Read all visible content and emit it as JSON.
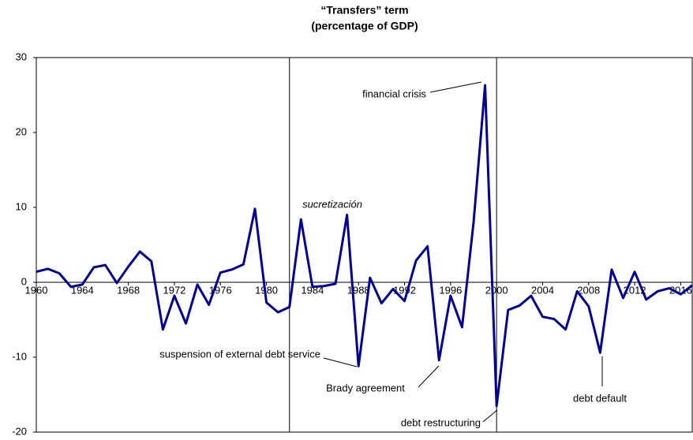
{
  "chart_data": {
    "type": "line",
    "title": "“Transfers” term",
    "subtitle": "(percentage of GDP)",
    "x": [
      1960,
      1961,
      1962,
      1963,
      1964,
      1965,
      1966,
      1967,
      1968,
      1969,
      1970,
      1971,
      1972,
      1973,
      1974,
      1975,
      1976,
      1977,
      1978,
      1979,
      1980,
      1981,
      1982,
      1983,
      1984,
      1985,
      1986,
      1987,
      1988,
      1989,
      1990,
      1991,
      1992,
      1993,
      1994,
      1995,
      1996,
      1997,
      1998,
      1999,
      2000,
      2001,
      2002,
      2003,
      2004,
      2005,
      2006,
      2007,
      2008,
      2009,
      2010,
      2011,
      2012,
      2013,
      2014,
      2015,
      2016,
      2017
    ],
    "values": [
      1.4,
      1.8,
      1.2,
      -0.6,
      -0.3,
      2.0,
      2.3,
      -0.1,
      2.1,
      4.1,
      2.8,
      -6.3,
      -1.8,
      -5.5,
      -0.3,
      -3.0,
      1.3,
      1.7,
      2.4,
      9.8,
      -2.7,
      -4.0,
      -3.3,
      8.4,
      -0.6,
      -0.5,
      -0.2,
      9.0,
      -11.2,
      0.6,
      -2.8,
      -0.9,
      -2.5,
      2.9,
      4.8,
      -10.4,
      -1.8,
      -6.0,
      8.0,
      26.3,
      -16.5,
      -3.7,
      -3.1,
      -1.8,
      -4.6,
      -4.9,
      -6.3,
      -1.2,
      -3.2,
      -9.4,
      1.7,
      -2.1,
      1.4,
      -2.3,
      -1.2,
      -0.8,
      -1.6,
      -0.4
    ],
    "color": "#000099",
    "xlim": [
      1960,
      2017
    ],
    "xticks": [
      1960,
      1964,
      1968,
      1972,
      1976,
      1980,
      1984,
      1988,
      1992,
      1996,
      2000,
      2004,
      2008,
      2012,
      2016
    ],
    "ylim": [
      -20,
      30
    ],
    "yticks": [
      -20,
      -10,
      0,
      10,
      20,
      30
    ],
    "grid": false,
    "vlines": [
      1982,
      2000
    ],
    "annotations": [
      "financial crisis",
      "sucretización",
      "suspension of external debt service",
      "Brady agreement",
      "debt restructuring",
      "debt default"
    ]
  }
}
